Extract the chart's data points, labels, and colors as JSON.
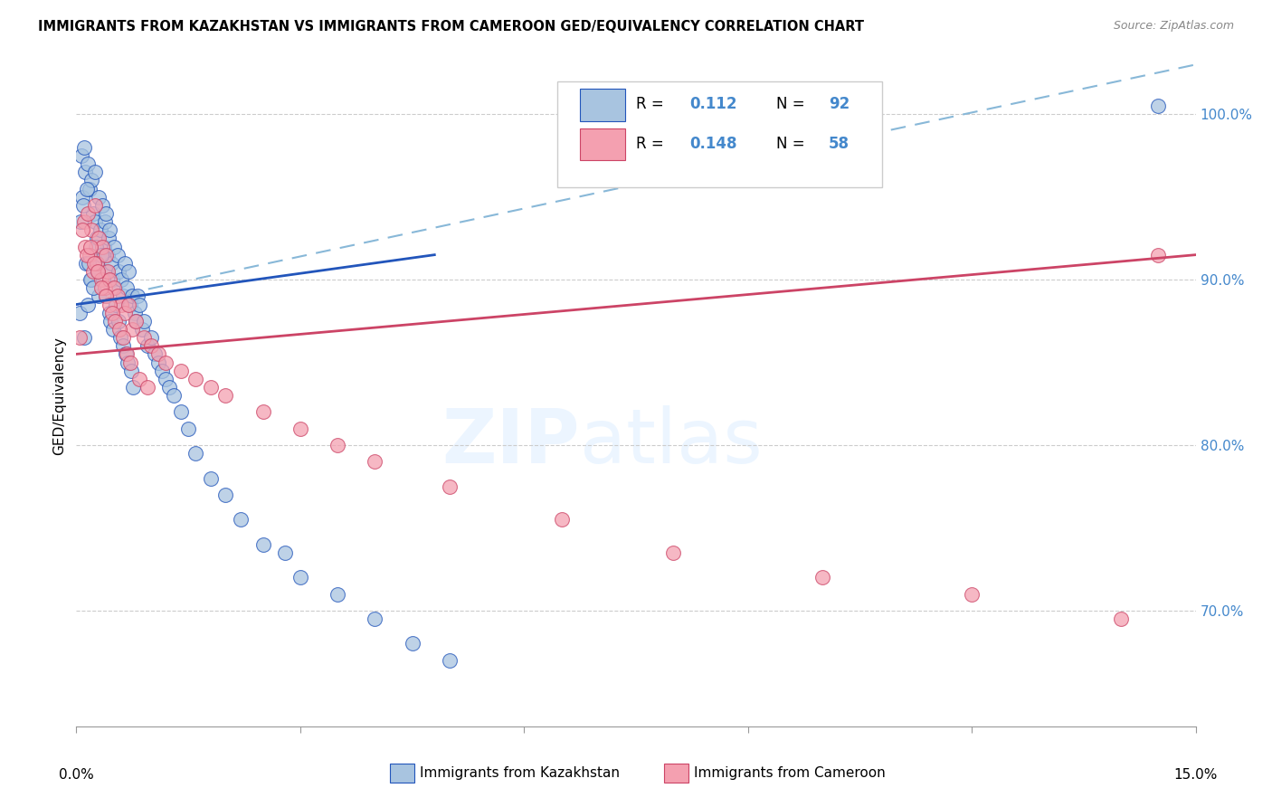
{
  "title": "IMMIGRANTS FROM KAZAKHSTAN VS IMMIGRANTS FROM CAMEROON GED/EQUIVALENCY CORRELATION CHART",
  "source": "Source: ZipAtlas.com",
  "ylabel": "GED/Equivalency",
  "xmin": 0.0,
  "xmax": 15.0,
  "ymin": 63.0,
  "ymax": 103.0,
  "yticks": [
    70.0,
    80.0,
    90.0,
    100.0
  ],
  "ytick_labels": [
    "70.0%",
    "80.0%",
    "90.0%",
    "100.0%"
  ],
  "blue_R": 0.112,
  "blue_N": 92,
  "pink_R": 0.148,
  "pink_N": 58,
  "scatter_color_blue": "#a8c4e0",
  "scatter_color_pink": "#f4a0b0",
  "line_color_blue": "#2255bb",
  "line_color_pink": "#cc4466",
  "line_color_dashed": "#88b8d8",
  "kazakhstan_x": [
    0.05,
    0.07,
    0.08,
    0.1,
    0.1,
    0.12,
    0.13,
    0.15,
    0.15,
    0.18,
    0.2,
    0.2,
    0.22,
    0.25,
    0.25,
    0.27,
    0.28,
    0.3,
    0.3,
    0.32,
    0.35,
    0.35,
    0.37,
    0.38,
    0.4,
    0.4,
    0.42,
    0.43,
    0.45,
    0.47,
    0.48,
    0.5,
    0.52,
    0.55,
    0.57,
    0.6,
    0.62,
    0.65,
    0.68,
    0.7,
    0.72,
    0.75,
    0.78,
    0.8,
    0.82,
    0.85,
    0.88,
    0.9,
    0.95,
    1.0,
    1.05,
    1.1,
    1.15,
    1.2,
    1.25,
    1.3,
    1.4,
    1.5,
    1.6,
    1.8,
    2.0,
    2.2,
    2.5,
    2.8,
    3.0,
    3.5,
    4.0,
    4.5,
    5.0,
    0.06,
    0.09,
    0.14,
    0.16,
    0.19,
    0.23,
    0.26,
    0.29,
    0.33,
    0.36,
    0.39,
    0.44,
    0.46,
    0.49,
    0.53,
    0.56,
    0.59,
    0.63,
    0.66,
    0.69,
    0.73,
    0.76,
    14.5
  ],
  "kazakhstan_y": [
    88.0,
    97.5,
    95.0,
    98.0,
    86.5,
    96.5,
    91.0,
    97.0,
    88.5,
    95.5,
    96.0,
    90.0,
    94.0,
    96.5,
    93.5,
    92.5,
    91.0,
    95.0,
    89.0,
    93.0,
    94.5,
    91.5,
    92.0,
    93.5,
    94.0,
    90.5,
    91.5,
    92.5,
    93.0,
    91.0,
    90.0,
    92.0,
    89.5,
    91.5,
    90.5,
    90.0,
    89.0,
    91.0,
    89.5,
    90.5,
    88.5,
    89.0,
    88.0,
    87.5,
    89.0,
    88.5,
    87.0,
    87.5,
    86.0,
    86.5,
    85.5,
    85.0,
    84.5,
    84.0,
    83.5,
    83.0,
    82.0,
    81.0,
    79.5,
    78.0,
    77.0,
    75.5,
    74.0,
    73.5,
    72.0,
    71.0,
    69.5,
    68.0,
    67.0,
    93.5,
    94.5,
    95.5,
    91.0,
    90.0,
    89.5,
    92.0,
    90.5,
    91.5,
    90.0,
    89.0,
    88.0,
    87.5,
    87.0,
    88.5,
    87.5,
    86.5,
    86.0,
    85.5,
    85.0,
    84.5,
    83.5,
    100.5
  ],
  "cameroon_x": [
    0.05,
    0.1,
    0.12,
    0.15,
    0.18,
    0.2,
    0.22,
    0.25,
    0.28,
    0.3,
    0.33,
    0.35,
    0.38,
    0.4,
    0.42,
    0.45,
    0.5,
    0.55,
    0.6,
    0.65,
    0.7,
    0.75,
    0.8,
    0.9,
    1.0,
    1.1,
    1.2,
    1.4,
    1.6,
    1.8,
    2.0,
    2.5,
    3.0,
    3.5,
    4.0,
    5.0,
    6.5,
    8.0,
    10.0,
    12.0,
    14.0,
    0.08,
    0.14,
    0.19,
    0.24,
    0.29,
    0.34,
    0.39,
    0.44,
    0.48,
    0.52,
    0.58,
    0.63,
    0.68,
    0.72,
    0.85,
    0.95,
    14.5
  ],
  "cameroon_y": [
    86.5,
    93.5,
    92.0,
    94.0,
    91.5,
    93.0,
    90.5,
    94.5,
    91.0,
    92.5,
    90.0,
    92.0,
    89.5,
    91.5,
    90.5,
    90.0,
    89.5,
    89.0,
    88.5,
    88.0,
    88.5,
    87.0,
    87.5,
    86.5,
    86.0,
    85.5,
    85.0,
    84.5,
    84.0,
    83.5,
    83.0,
    82.0,
    81.0,
    80.0,
    79.0,
    77.5,
    75.5,
    73.5,
    72.0,
    71.0,
    69.5,
    93.0,
    91.5,
    92.0,
    91.0,
    90.5,
    89.5,
    89.0,
    88.5,
    88.0,
    87.5,
    87.0,
    86.5,
    85.5,
    85.0,
    84.0,
    83.5,
    91.5
  ],
  "blue_line_x0": 0.0,
  "blue_line_x1": 4.8,
  "blue_line_y0": 88.5,
  "blue_line_y1": 91.5,
  "pink_line_x0": 0.0,
  "pink_line_x1": 15.0,
  "pink_line_y0": 85.5,
  "pink_line_y1": 91.5,
  "dashed_line_x0": 0.0,
  "dashed_line_x1": 15.0,
  "dashed_line_y0": 88.5,
  "dashed_line_y1": 103.0
}
